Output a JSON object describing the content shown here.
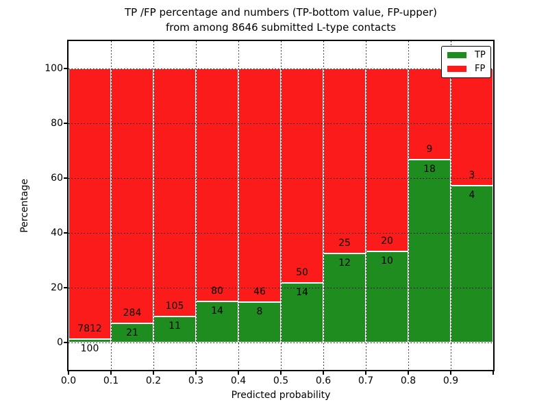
{
  "figure": {
    "title_line1": "TP /FP percentage and numbers (TP-bottom value, FP-upper)",
    "title_line2": "from among 8646 submitted L-type contacts"
  },
  "chart_data": {
    "type": "bar",
    "stacked": true,
    "title": "TP /FP percentage and numbers (TP-bottom value, FP-upper) from among 8646 submitted L-type contacts",
    "xlabel": "Predicted probability",
    "ylabel": "Percentage",
    "xlim": [
      0.0,
      1.0
    ],
    "ylim": [
      -10,
      110
    ],
    "grid": true,
    "bin_edges": [
      0.0,
      0.1,
      0.2,
      0.3,
      0.4,
      0.5,
      0.6,
      0.7,
      0.8,
      0.9,
      1.0
    ],
    "x_tick_labels": [
      "0.0",
      "0.1",
      "0.2",
      "0.3",
      "0.4",
      "0.5",
      "0.6",
      "0.7",
      "0.8",
      "0.9"
    ],
    "y_tick_values": [
      0,
      20,
      40,
      60,
      80,
      100
    ],
    "y_tick_labels": [
      "0",
      "20",
      "40",
      "60",
      "80",
      "100"
    ],
    "series": [
      {
        "name": "TP",
        "color": "#1e8c1e",
        "counts": [
          100,
          21,
          11,
          14,
          8,
          14,
          12,
          10,
          18,
          4
        ]
      },
      {
        "name": "FP",
        "color": "#fb1b1b",
        "counts": [
          7812,
          284,
          105,
          80,
          46,
          50,
          25,
          20,
          9,
          3
        ]
      }
    ],
    "tp_percent_of_bin": [
      1.26,
      6.89,
      9.48,
      14.89,
      14.81,
      21.88,
      32.43,
      33.33,
      66.67,
      57.14
    ],
    "bar_total_percent": 100,
    "total_contacts": 8646,
    "legend": {
      "position": "upper right",
      "entries": [
        "TP",
        "FP"
      ]
    },
    "colors": {
      "tp": "#1e8c1e",
      "fp": "#fb1b1b",
      "grid": "#000000",
      "frame": "#000000",
      "background": "#ffffff"
    }
  }
}
